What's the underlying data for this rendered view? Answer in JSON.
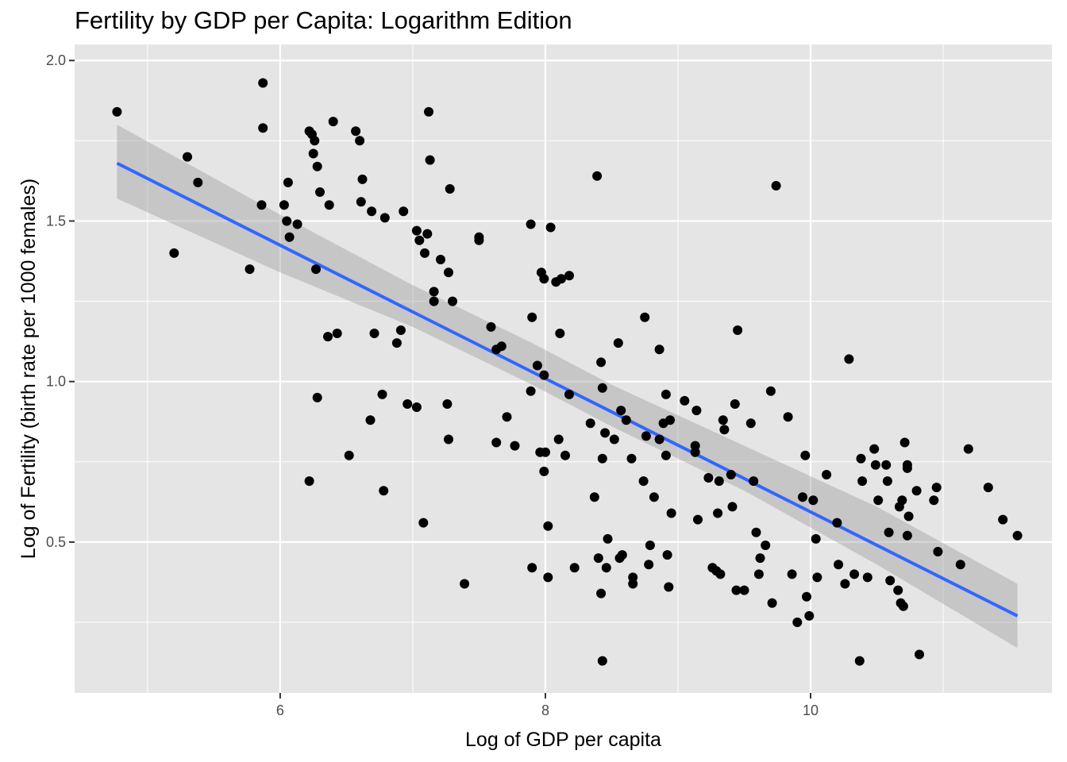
{
  "chart_data": {
    "type": "scatter",
    "title": "Fertility by GDP per Capita: Logarithm Edition",
    "xlabel": "Log of GDP per capita",
    "ylabel": "Log of Fertility (birth rate per 1000 females)",
    "xlim": [
      4.45,
      11.82
    ],
    "ylim": [
      0.03,
      2.05
    ],
    "x_ticks": [
      6,
      8,
      10
    ],
    "x_tick_labels": [
      "6",
      "8",
      "10"
    ],
    "y_ticks": [
      0.5,
      1.0,
      1.5,
      2.0
    ],
    "y_tick_labels": [
      "0.5",
      "1.0",
      "1.5",
      "2.0"
    ],
    "x_minor": [
      5,
      7,
      9,
      11
    ],
    "y_minor": [
      0.25,
      0.75,
      1.25,
      1.75
    ],
    "grid": true,
    "legend": "none",
    "colors": {
      "panel": "#e5e5e5",
      "grid": "#ffffff",
      "point": "#000000",
      "fit_line": "#3366ff",
      "ribbon": "#999999"
    },
    "points": [
      [
        4.77,
        1.84
      ],
      [
        5.2,
        1.4
      ],
      [
        5.3,
        1.7
      ],
      [
        5.38,
        1.62
      ],
      [
        5.77,
        1.35
      ],
      [
        5.87,
        1.93
      ],
      [
        5.87,
        1.79
      ],
      [
        5.86,
        1.55
      ],
      [
        6.03,
        1.55
      ],
      [
        6.05,
        1.5
      ],
      [
        6.06,
        1.62
      ],
      [
        6.07,
        1.45
      ],
      [
        6.13,
        1.49
      ],
      [
        6.22,
        1.78
      ],
      [
        6.24,
        1.77
      ],
      [
        6.25,
        1.71
      ],
      [
        6.26,
        1.75
      ],
      [
        6.28,
        1.67
      ],
      [
        6.3,
        1.59
      ],
      [
        6.27,
        1.35
      ],
      [
        6.28,
        0.95
      ],
      [
        6.22,
        0.69
      ],
      [
        6.36,
        1.14
      ],
      [
        6.37,
        1.55
      ],
      [
        6.4,
        1.81
      ],
      [
        6.43,
        1.15
      ],
      [
        6.52,
        0.77
      ],
      [
        6.57,
        1.78
      ],
      [
        6.6,
        1.75
      ],
      [
        6.62,
        1.63
      ],
      [
        6.61,
        1.56
      ],
      [
        6.68,
        0.88
      ],
      [
        6.69,
        1.53
      ],
      [
        6.71,
        1.15
      ],
      [
        6.77,
        0.96
      ],
      [
        6.79,
        1.51
      ],
      [
        6.78,
        0.66
      ],
      [
        6.88,
        1.12
      ],
      [
        6.91,
        1.16
      ],
      [
        6.93,
        1.53
      ],
      [
        6.96,
        0.93
      ],
      [
        7.03,
        0.92
      ],
      [
        7.03,
        1.47
      ],
      [
        7.05,
        1.44
      ],
      [
        7.08,
        0.56
      ],
      [
        7.09,
        1.4
      ],
      [
        7.11,
        1.46
      ],
      [
        7.12,
        1.84
      ],
      [
        7.13,
        1.69
      ],
      [
        7.16,
        1.28
      ],
      [
        7.16,
        1.25
      ],
      [
        7.21,
        1.38
      ],
      [
        7.26,
        0.93
      ],
      [
        7.27,
        1.34
      ],
      [
        7.28,
        1.6
      ],
      [
        7.27,
        0.82
      ],
      [
        7.3,
        1.25
      ],
      [
        7.39,
        0.37
      ],
      [
        7.5,
        1.45
      ],
      [
        7.5,
        1.44
      ],
      [
        7.59,
        1.17
      ],
      [
        7.63,
        1.1
      ],
      [
        7.63,
        0.81
      ],
      [
        7.67,
        1.11
      ],
      [
        7.71,
        0.89
      ],
      [
        7.77,
        0.8
      ],
      [
        7.89,
        1.49
      ],
      [
        7.89,
        0.97
      ],
      [
        7.9,
        1.2
      ],
      [
        7.9,
        0.42
      ],
      [
        7.94,
        1.05
      ],
      [
        7.96,
        0.78
      ],
      [
        7.97,
        1.34
      ],
      [
        7.99,
        1.02
      ],
      [
        7.99,
        1.32
      ],
      [
        7.99,
        0.72
      ],
      [
        8.0,
        0.78
      ],
      [
        8.02,
        0.55
      ],
      [
        8.02,
        0.39
      ],
      [
        8.04,
        1.48
      ],
      [
        8.08,
        1.31
      ],
      [
        8.1,
        0.82
      ],
      [
        8.11,
        1.15
      ],
      [
        8.12,
        1.32
      ],
      [
        8.15,
        0.77
      ],
      [
        8.18,
        1.33
      ],
      [
        8.18,
        0.96
      ],
      [
        8.22,
        0.42
      ],
      [
        8.34,
        0.87
      ],
      [
        8.37,
        0.64
      ],
      [
        8.39,
        1.64
      ],
      [
        8.4,
        0.45
      ],
      [
        8.42,
        0.34
      ],
      [
        8.42,
        1.06
      ],
      [
        8.43,
        0.98
      ],
      [
        8.43,
        0.76
      ],
      [
        8.43,
        0.13
      ],
      [
        8.45,
        0.84
      ],
      [
        8.46,
        0.42
      ],
      [
        8.47,
        0.51
      ],
      [
        8.52,
        0.82
      ],
      [
        8.55,
        1.12
      ],
      [
        8.56,
        0.45
      ],
      [
        8.57,
        0.91
      ],
      [
        8.58,
        0.46
      ],
      [
        8.61,
        0.88
      ],
      [
        8.65,
        0.76
      ],
      [
        8.66,
        0.39
      ],
      [
        8.66,
        0.37
      ],
      [
        8.75,
        1.2
      ],
      [
        8.74,
        0.69
      ],
      [
        8.76,
        0.83
      ],
      [
        8.78,
        0.43
      ],
      [
        8.79,
        0.49
      ],
      [
        8.82,
        0.64
      ],
      [
        8.86,
        1.1
      ],
      [
        8.86,
        0.82
      ],
      [
        8.89,
        0.87
      ],
      [
        8.91,
        0.96
      ],
      [
        8.91,
        0.77
      ],
      [
        8.92,
        0.46
      ],
      [
        8.93,
        0.36
      ],
      [
        8.94,
        0.88
      ],
      [
        8.95,
        0.59
      ],
      [
        9.05,
        0.94
      ],
      [
        9.13,
        0.8
      ],
      [
        9.13,
        0.78
      ],
      [
        9.14,
        0.91
      ],
      [
        9.15,
        0.57
      ],
      [
        9.23,
        0.7
      ],
      [
        9.26,
        0.42
      ],
      [
        9.29,
        0.41
      ],
      [
        9.3,
        0.59
      ],
      [
        9.31,
        0.69
      ],
      [
        9.32,
        0.4
      ],
      [
        9.34,
        0.88
      ],
      [
        9.35,
        0.85
      ],
      [
        9.4,
        0.71
      ],
      [
        9.41,
        0.61
      ],
      [
        9.43,
        0.93
      ],
      [
        9.44,
        0.35
      ],
      [
        9.45,
        1.16
      ],
      [
        9.5,
        0.35
      ],
      [
        9.55,
        0.87
      ],
      [
        9.57,
        0.69
      ],
      [
        9.59,
        0.53
      ],
      [
        9.61,
        0.4
      ],
      [
        9.62,
        0.45
      ],
      [
        9.66,
        0.49
      ],
      [
        9.7,
        0.97
      ],
      [
        9.71,
        0.31
      ],
      [
        9.74,
        1.61
      ],
      [
        9.83,
        0.89
      ],
      [
        9.86,
        0.4
      ],
      [
        9.9,
        0.25
      ],
      [
        9.94,
        0.64
      ],
      [
        9.96,
        0.77
      ],
      [
        9.97,
        0.33
      ],
      [
        9.99,
        0.27
      ],
      [
        10.02,
        0.63
      ],
      [
        10.04,
        0.51
      ],
      [
        10.05,
        0.39
      ],
      [
        10.12,
        0.71
      ],
      [
        10.2,
        0.56
      ],
      [
        10.21,
        0.43
      ],
      [
        10.26,
        0.37
      ],
      [
        10.29,
        1.07
      ],
      [
        10.33,
        0.4
      ],
      [
        10.37,
        0.13
      ],
      [
        10.38,
        0.76
      ],
      [
        10.39,
        0.69
      ],
      [
        10.43,
        0.39
      ],
      [
        10.48,
        0.79
      ],
      [
        10.49,
        0.74
      ],
      [
        10.51,
        0.63
      ],
      [
        10.57,
        0.74
      ],
      [
        10.58,
        0.69
      ],
      [
        10.59,
        0.53
      ],
      [
        10.6,
        0.38
      ],
      [
        10.66,
        0.35
      ],
      [
        10.67,
        0.61
      ],
      [
        10.68,
        0.31
      ],
      [
        10.69,
        0.63
      ],
      [
        10.7,
        0.3
      ],
      [
        10.71,
        0.81
      ],
      [
        10.73,
        0.74
      ],
      [
        10.73,
        0.73
      ],
      [
        10.73,
        0.52
      ],
      [
        10.74,
        0.58
      ],
      [
        10.8,
        0.66
      ],
      [
        10.82,
        0.15
      ],
      [
        10.93,
        0.63
      ],
      [
        10.95,
        0.67
      ],
      [
        10.96,
        0.47
      ],
      [
        11.13,
        0.43
      ],
      [
        11.19,
        0.79
      ],
      [
        11.34,
        0.67
      ],
      [
        11.45,
        0.57
      ],
      [
        11.56,
        0.52
      ]
    ],
    "fit_line": {
      "x": [
        4.77,
        11.56
      ],
      "y": [
        1.68,
        0.27
      ]
    },
    "confidence_band": {
      "x": [
        4.77,
        6.0,
        7.0,
        7.9,
        8.5,
        9.5,
        10.5,
        11.56
      ],
      "upper": [
        1.8,
        1.52,
        1.3,
        1.12,
        0.99,
        0.8,
        0.61,
        0.37
      ],
      "lower": [
        1.57,
        1.34,
        1.17,
        0.99,
        0.86,
        0.66,
        0.43,
        0.17
      ]
    }
  }
}
